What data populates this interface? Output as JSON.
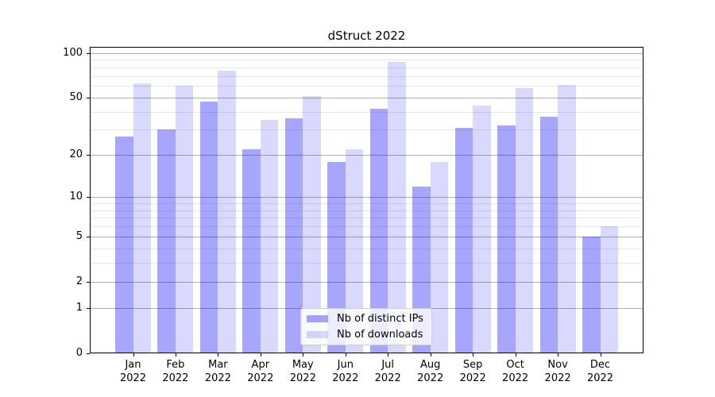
{
  "chart_data": {
    "type": "bar",
    "title": "dStruct 2022",
    "x_tick_months": [
      "Jan",
      "Feb",
      "Mar",
      "Apr",
      "May",
      "Jun",
      "Jul",
      "Aug",
      "Sep",
      "Oct",
      "Nov",
      "Dec"
    ],
    "x_tick_year": "2022",
    "series": [
      {
        "name": "Nb of distinct IPs",
        "color": "rgba(0,0,255,0.35)",
        "values": [
          27,
          30,
          47,
          22,
          36,
          18,
          42,
          12,
          31,
          32,
          37,
          5
        ]
      },
      {
        "name": "Nb of downloads",
        "color": "rgba(0,0,255,0.15)",
        "values": [
          62,
          60,
          76,
          35,
          51,
          22,
          87,
          18,
          44,
          58,
          61,
          6
        ]
      }
    ],
    "y_axis": {
      "scale": "symlog-log1p",
      "major_ticks": [
        0,
        1,
        2,
        5,
        10,
        20,
        50,
        100
      ],
      "minor_gridlines": [
        3,
        4,
        6,
        7,
        8,
        9,
        30,
        40,
        60,
        70,
        80,
        90
      ],
      "ylim": [
        0,
        100
      ]
    },
    "legend": {
      "position": "lower center"
    },
    "colors": {
      "grid_major": "#b0b0b0",
      "grid_minor": "#e8e8e8",
      "spine": "#000000",
      "text": "#000000",
      "background": "#ffffff"
    }
  }
}
